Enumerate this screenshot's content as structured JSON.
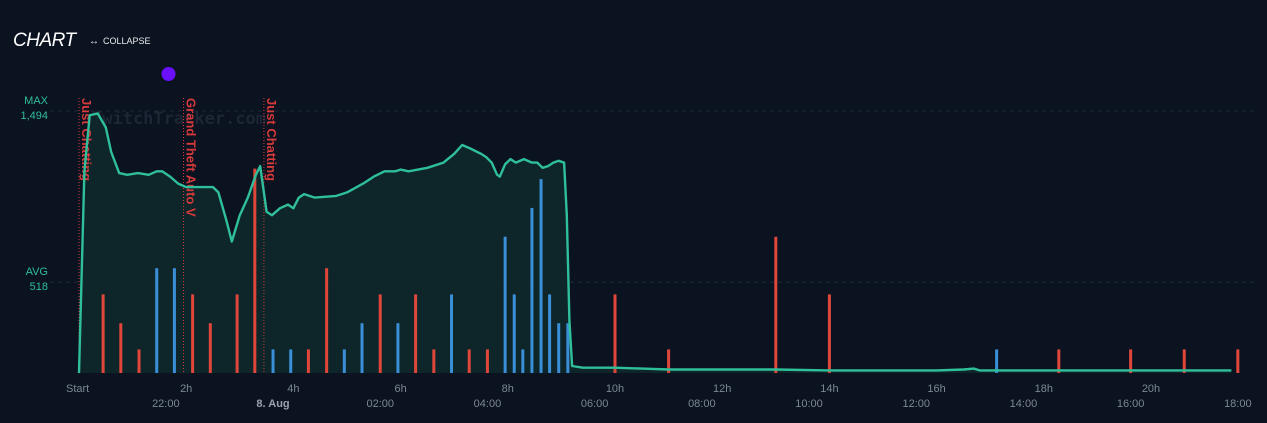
{
  "header": {
    "title": "CHART",
    "collapse_label": "COLLAPSE",
    "collapse_icon": "double-arrow-icon"
  },
  "watermark": "TwitchTracker.com",
  "colors": {
    "background": "#0b1220",
    "line": "#2fbf9a",
    "fill": "#0f2a2c",
    "red_bar": "#e0473a",
    "blue_bar": "#3a8fd8",
    "marker": "#6a10ff",
    "category_line": "#d63a3a",
    "grid": "#1f2b38"
  },
  "chart_data": {
    "type": "line",
    "y_reference": [
      {
        "name": "MAX",
        "value": 1494
      },
      {
        "name": "AVG",
        "value": 518
      }
    ],
    "ylim": [
      0,
      1494
    ],
    "x_ticks_elapsed": [
      "Start",
      "2h",
      "4h",
      "6h",
      "8h",
      "10h",
      "12h",
      "14h",
      "16h",
      "18h",
      "20h"
    ],
    "x_ticks_clock": [
      "22:00",
      "8. Aug",
      "02:00",
      "04:00",
      "06:00",
      "08:00",
      "10:00",
      "12:00",
      "14:00",
      "16:00",
      "18:00"
    ],
    "categories": [
      {
        "name": "Just Chatting",
        "start_h": 0.0
      },
      {
        "name": "Grand Theft Auto V",
        "start_h": 1.95
      },
      {
        "name": "Just Chatting",
        "start_h": 3.45
      }
    ],
    "marker": {
      "x_h": 1.67
    },
    "series": [
      {
        "values": [
          [
            0.0,
            0
          ],
          [
            0.1,
            1150
          ],
          [
            0.2,
            1470
          ],
          [
            0.35,
            1480
          ],
          [
            0.5,
            1400
          ],
          [
            0.6,
            1260
          ],
          [
            0.75,
            1140
          ],
          [
            0.9,
            1130
          ],
          [
            1.1,
            1140
          ],
          [
            1.3,
            1130
          ],
          [
            1.45,
            1150
          ],
          [
            1.55,
            1150
          ],
          [
            1.7,
            1120
          ],
          [
            1.85,
            1080
          ],
          [
            2.0,
            1060
          ],
          [
            2.2,
            1060
          ],
          [
            2.5,
            1060
          ],
          [
            2.6,
            1030
          ],
          [
            2.75,
            870
          ],
          [
            2.85,
            750
          ],
          [
            3.0,
            900
          ],
          [
            3.15,
            1000
          ],
          [
            3.3,
            1130
          ],
          [
            3.38,
            1180
          ],
          [
            3.5,
            920
          ],
          [
            3.6,
            900
          ],
          [
            3.75,
            940
          ],
          [
            3.9,
            960
          ],
          [
            4.0,
            940
          ],
          [
            4.1,
            1000
          ],
          [
            4.2,
            1020
          ],
          [
            4.4,
            1000
          ],
          [
            4.8,
            1010
          ],
          [
            5.0,
            1030
          ],
          [
            5.3,
            1080
          ],
          [
            5.5,
            1120
          ],
          [
            5.7,
            1150
          ],
          [
            5.9,
            1150
          ],
          [
            6.0,
            1160
          ],
          [
            6.15,
            1150
          ],
          [
            6.5,
            1170
          ],
          [
            6.8,
            1200
          ],
          [
            7.0,
            1250
          ],
          [
            7.15,
            1300
          ],
          [
            7.3,
            1280
          ],
          [
            7.5,
            1250
          ],
          [
            7.6,
            1230
          ],
          [
            7.7,
            1200
          ],
          [
            7.8,
            1130
          ],
          [
            7.85,
            1120
          ],
          [
            7.95,
            1190
          ],
          [
            8.05,
            1220
          ],
          [
            8.15,
            1200
          ],
          [
            8.3,
            1220
          ],
          [
            8.45,
            1200
          ],
          [
            8.55,
            1200
          ],
          [
            8.65,
            1170
          ],
          [
            8.75,
            1180
          ],
          [
            8.85,
            1200
          ],
          [
            8.95,
            1210
          ],
          [
            9.05,
            1200
          ],
          [
            9.1,
            900
          ],
          [
            9.15,
            300
          ],
          [
            9.2,
            40
          ],
          [
            9.4,
            30
          ],
          [
            10.0,
            30
          ],
          [
            10.5,
            25
          ],
          [
            11.0,
            20
          ],
          [
            12.0,
            20
          ],
          [
            13.0,
            20
          ],
          [
            14.0,
            15
          ],
          [
            15.0,
            15
          ],
          [
            16.0,
            15
          ],
          [
            16.5,
            20
          ],
          [
            16.7,
            25
          ],
          [
            16.8,
            15
          ],
          [
            17.0,
            15
          ],
          [
            18.0,
            15
          ],
          [
            19.0,
            15
          ],
          [
            20.0,
            15
          ],
          [
            21.5,
            15
          ]
        ]
      }
    ],
    "bars": [
      {
        "x_h": 0.45,
        "v": 0.3,
        "color": "red"
      },
      {
        "x_h": 0.78,
        "v": 0.19,
        "color": "red"
      },
      {
        "x_h": 1.12,
        "v": 0.09,
        "color": "red"
      },
      {
        "x_h": 1.45,
        "v": 0.4,
        "color": "blue"
      },
      {
        "x_h": 1.78,
        "v": 0.4,
        "color": "blue"
      },
      {
        "x_h": 2.12,
        "v": 0.3,
        "color": "red"
      },
      {
        "x_h": 2.45,
        "v": 0.19,
        "color": "red"
      },
      {
        "x_h": 2.95,
        "v": 0.3,
        "color": "red"
      },
      {
        "x_h": 3.28,
        "v": 0.78,
        "color": "red"
      },
      {
        "x_h": 3.62,
        "v": 0.09,
        "color": "blue"
      },
      {
        "x_h": 3.95,
        "v": 0.09,
        "color": "blue"
      },
      {
        "x_h": 4.28,
        "v": 0.09,
        "color": "red"
      },
      {
        "x_h": 4.62,
        "v": 0.4,
        "color": "red"
      },
      {
        "x_h": 4.95,
        "v": 0.09,
        "color": "blue"
      },
      {
        "x_h": 5.28,
        "v": 0.19,
        "color": "blue"
      },
      {
        "x_h": 5.62,
        "v": 0.3,
        "color": "red"
      },
      {
        "x_h": 5.95,
        "v": 0.19,
        "color": "blue"
      },
      {
        "x_h": 6.28,
        "v": 0.3,
        "color": "red"
      },
      {
        "x_h": 6.62,
        "v": 0.09,
        "color": "red"
      },
      {
        "x_h": 6.95,
        "v": 0.3,
        "color": "blue"
      },
      {
        "x_h": 7.28,
        "v": 0.09,
        "color": "red"
      },
      {
        "x_h": 7.62,
        "v": 0.09,
        "color": "red"
      },
      {
        "x_h": 7.95,
        "v": 0.52,
        "color": "blue"
      },
      {
        "x_h": 8.12,
        "v": 0.3,
        "color": "blue"
      },
      {
        "x_h": 8.28,
        "v": 0.09,
        "color": "blue"
      },
      {
        "x_h": 8.45,
        "v": 0.63,
        "color": "blue"
      },
      {
        "x_h": 8.62,
        "v": 0.74,
        "color": "blue"
      },
      {
        "x_h": 8.78,
        "v": 0.3,
        "color": "blue"
      },
      {
        "x_h": 8.95,
        "v": 0.19,
        "color": "blue"
      },
      {
        "x_h": 9.12,
        "v": 0.19,
        "color": "blue"
      },
      {
        "x_h": 10.0,
        "v": 0.3,
        "color": "red"
      },
      {
        "x_h": 11.0,
        "v": 0.09,
        "color": "red"
      },
      {
        "x_h": 13.0,
        "v": 0.52,
        "color": "red"
      },
      {
        "x_h": 14.0,
        "v": 0.3,
        "color": "red"
      },
      {
        "x_h": 17.12,
        "v": 0.09,
        "color": "blue"
      },
      {
        "x_h": 18.28,
        "v": 0.09,
        "color": "red"
      },
      {
        "x_h": 19.62,
        "v": 0.09,
        "color": "red"
      },
      {
        "x_h": 20.62,
        "v": 0.09,
        "color": "red"
      },
      {
        "x_h": 21.62,
        "v": 0.09,
        "color": "red"
      }
    ]
  }
}
